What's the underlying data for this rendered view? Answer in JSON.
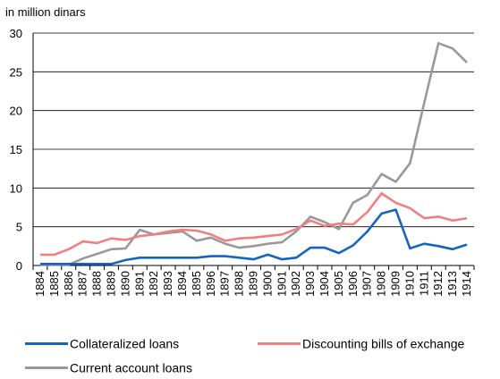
{
  "chart_data": {
    "type": "line",
    "unit_label": "in million dinars",
    "ylim": [
      0,
      30
    ],
    "y_ticks": [
      "0",
      "5",
      "10",
      "15",
      "20",
      "25",
      "30"
    ],
    "x": [
      "1884",
      "1885",
      "1886",
      "1887",
      "1888",
      "1889",
      "1890",
      "1891",
      "1892",
      "1893",
      "1894",
      "1895",
      "1896",
      "1897",
      "1898",
      "1899",
      "1900",
      "1901",
      "1902",
      "1903",
      "1904",
      "1905",
      "1906",
      "1907",
      "1908",
      "1909",
      "1910",
      "1911",
      "1912",
      "1913",
      "1914"
    ],
    "grid": "horizontal",
    "legend_position": "bottom",
    "series": [
      {
        "name": "Collateralized loans",
        "color": "#1565C0",
        "values": [
          0.2,
          0.2,
          0.2,
          0.2,
          0.2,
          0.2,
          0.7,
          1.0,
          1.0,
          1.0,
          1.0,
          1.0,
          1.2,
          1.2,
          1.0,
          0.8,
          1.4,
          0.8,
          1.0,
          2.3,
          2.3,
          1.6,
          2.6,
          4.4,
          6.7,
          7.2,
          2.2,
          2.8,
          2.5,
          2.1,
          2.7
        ]
      },
      {
        "name": "Discounting bills of exchange",
        "color": "#F08080",
        "values": [
          1.4,
          1.4,
          2.1,
          3.1,
          2.9,
          3.5,
          3.3,
          3.8,
          4.0,
          4.4,
          4.6,
          4.5,
          4.0,
          3.2,
          3.5,
          3.6,
          3.8,
          4.0,
          4.7,
          5.8,
          5.1,
          5.4,
          5.3,
          6.9,
          9.3,
          8.1,
          7.4,
          6.1,
          6.3,
          5.8,
          6.1
        ]
      },
      {
        "name": "Current account loans",
        "color": "#999999",
        "values": [
          0.1,
          0.1,
          0.1,
          0.9,
          1.5,
          2.1,
          2.2,
          4.6,
          4.0,
          4.2,
          4.4,
          3.2,
          3.6,
          2.8,
          2.3,
          2.5,
          2.8,
          3.0,
          4.4,
          6.3,
          5.6,
          4.7,
          8.1,
          9.1,
          11.8,
          10.8,
          13.2,
          21.0,
          28.7,
          28.0,
          26.2
        ]
      }
    ]
  }
}
